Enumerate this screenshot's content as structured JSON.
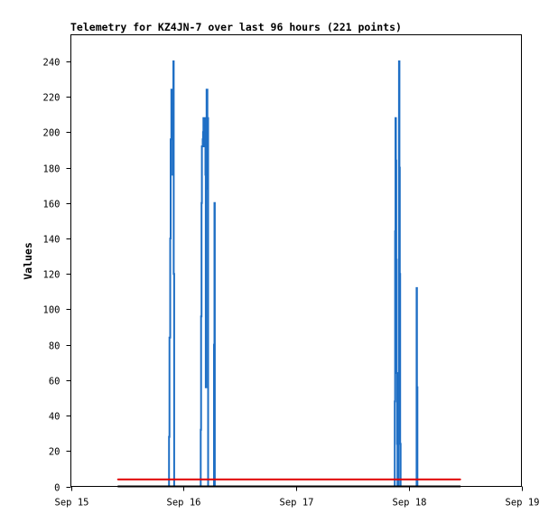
{
  "chart_data": {
    "type": "line",
    "title": "Telemetry for KZ4JN-7 over last 96 hours (221 points)",
    "xlabel": "",
    "ylabel": "Values",
    "x_ticks": [
      "Sep 15",
      "Sep 16",
      "Sep 17",
      "Sep 18",
      "Sep 19"
    ],
    "y_ticks": [
      0,
      20,
      40,
      60,
      80,
      100,
      120,
      140,
      160,
      180,
      200,
      220,
      240
    ],
    "xlim": [
      "Sep 15 00:00",
      "Sep 19 00:00"
    ],
    "ylim": [
      0,
      255
    ],
    "grid": false,
    "series": [
      {
        "color": "#1f6fc5",
        "step": true,
        "points": [
          [
            "Sep 15 20:40",
            0
          ],
          [
            "Sep 15 20:55",
            28
          ],
          [
            "Sep 15 21:00",
            84
          ],
          [
            "Sep 15 21:10",
            140
          ],
          [
            "Sep 15 21:15",
            196
          ],
          [
            "Sep 15 21:25",
            224
          ],
          [
            "Sep 15 21:30",
            208
          ],
          [
            "Sep 15 21:35",
            224
          ],
          [
            "Sep 15 21:40",
            176
          ],
          [
            "Sep 15 21:45",
            216
          ],
          [
            "Sep 15 21:50",
            240
          ],
          [
            "Sep 15 21:55",
            120
          ],
          [
            "Sep 15 22:00",
            0
          ],
          [
            "Sep 16 03:30",
            0
          ],
          [
            "Sep 16 03:40",
            32
          ],
          [
            "Sep 16 03:45",
            96
          ],
          [
            "Sep 16 03:50",
            160
          ],
          [
            "Sep 16 03:55",
            192
          ],
          [
            "Sep 16 04:05",
            196
          ],
          [
            "Sep 16 04:10",
            200
          ],
          [
            "Sep 16 04:15",
            208
          ],
          [
            "Sep 16 04:20",
            192
          ],
          [
            "Sep 16 04:25",
            204
          ],
          [
            "Sep 16 04:30",
            200
          ],
          [
            "Sep 16 04:35",
            208
          ],
          [
            "Sep 16 04:40",
            176
          ],
          [
            "Sep 16 04:45",
            56
          ],
          [
            "Sep 16 04:50",
            168
          ],
          [
            "Sep 16 04:55",
            224
          ],
          [
            "Sep 16 05:05",
            200
          ],
          [
            "Sep 16 05:10",
            208
          ],
          [
            "Sep 16 05:15",
            0
          ],
          [
            "Sep 16 06:25",
            0
          ],
          [
            "Sep 16 06:30",
            80
          ],
          [
            "Sep 16 06:35",
            160
          ],
          [
            "Sep 16 06:40",
            0
          ],
          [
            "Sep 17 20:50",
            0
          ],
          [
            "Sep 17 21:00",
            48
          ],
          [
            "Sep 17 21:05",
            144
          ],
          [
            "Sep 17 21:10",
            208
          ],
          [
            "Sep 17 21:15",
            184
          ],
          [
            "Sep 17 21:20",
            128
          ],
          [
            "Sep 17 21:25",
            64
          ],
          [
            "Sep 17 21:30",
            24
          ],
          [
            "Sep 17 21:35",
            0
          ],
          [
            "Sep 17 21:50",
            64
          ],
          [
            "Sep 17 21:55",
            240
          ],
          [
            "Sep 17 22:00",
            180
          ],
          [
            "Sep 17 22:05",
            120
          ],
          [
            "Sep 17 22:10",
            24
          ],
          [
            "Sep 17 22:15",
            0
          ],
          [
            "Sep 18 01:35",
            0
          ],
          [
            "Sep 18 01:40",
            112
          ],
          [
            "Sep 18 01:45",
            56
          ],
          [
            "Sep 18 01:50",
            0
          ]
        ]
      },
      {
        "color": "#e00000",
        "step": false,
        "points": [
          [
            "Sep 15 10:00",
            4
          ],
          [
            "Sep 18 11:00",
            4
          ]
        ]
      },
      {
        "color": "#000000",
        "step": false,
        "points": [
          [
            "Sep 15 10:00",
            0
          ],
          [
            "Sep 18 11:00",
            0
          ]
        ]
      }
    ]
  }
}
